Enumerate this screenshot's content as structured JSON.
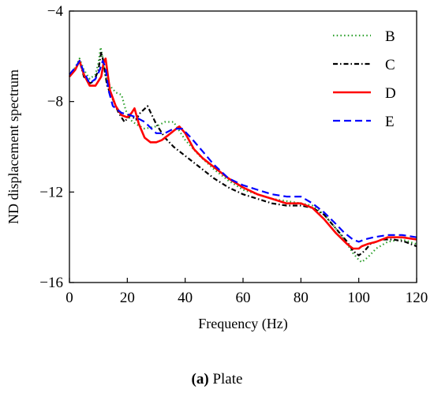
{
  "chart_data": {
    "type": "line",
    "title": "",
    "xlabel": "Frequency (Hz)",
    "ylabel": "ND displacement spectrum",
    "xlim": [
      0,
      120
    ],
    "ylim": [
      -16,
      -4
    ],
    "xticks": [
      0,
      20,
      40,
      60,
      80,
      100,
      120
    ],
    "yticks": [
      -16,
      -12,
      -8,
      -4
    ],
    "legend_position": "top-right",
    "grid": false,
    "series": [
      {
        "name": "B",
        "color": "#2ca02c",
        "style": "dotted",
        "x": [
          0,
          2,
          3.5,
          5,
          7,
          9,
          10,
          10.8,
          11.5,
          12.5,
          14,
          16,
          18,
          19.5,
          21,
          23,
          26,
          30,
          33,
          36,
          40,
          45,
          50,
          55,
          60,
          65,
          70,
          75,
          80,
          84,
          88,
          92,
          95,
          98,
          100,
          101,
          103,
          106,
          110,
          115,
          120
        ],
        "y": [
          -6.8,
          -6.5,
          -6.1,
          -6.6,
          -7.0,
          -6.8,
          -6.3,
          -5.6,
          -6.1,
          -6.9,
          -7.3,
          -7.6,
          -7.7,
          -8.4,
          -8.8,
          -9.0,
          -9.2,
          -9.1,
          -8.9,
          -8.9,
          -9.7,
          -10.4,
          -11.0,
          -11.5,
          -11.9,
          -12.1,
          -12.3,
          -12.4,
          -12.5,
          -12.6,
          -13.0,
          -13.6,
          -14.1,
          -14.7,
          -15.0,
          -15.1,
          -14.9,
          -14.5,
          -14.2,
          -14.1,
          -14.3
        ]
      },
      {
        "name": "C",
        "color": "#000000",
        "style": "dashdot",
        "x": [
          0,
          2,
          3.5,
          5,
          7,
          8.5,
          10,
          11,
          11.7,
          13,
          15,
          17,
          19,
          21,
          23,
          24.5,
          27,
          30,
          33,
          36,
          40,
          45,
          50,
          55,
          60,
          65,
          70,
          75,
          80,
          84,
          88,
          92,
          96,
          98,
          100,
          102,
          104,
          108,
          112,
          116,
          120
        ],
        "y": [
          -6.9,
          -6.6,
          -6.2,
          -6.9,
          -7.2,
          -7.1,
          -6.6,
          -5.8,
          -6.2,
          -7.3,
          -7.9,
          -8.5,
          -8.9,
          -8.6,
          -8.8,
          -8.5,
          -8.2,
          -9.0,
          -9.6,
          -10.0,
          -10.4,
          -10.9,
          -11.4,
          -11.8,
          -12.1,
          -12.3,
          -12.5,
          -12.6,
          -12.6,
          -12.7,
          -13.0,
          -13.6,
          -14.2,
          -14.6,
          -14.8,
          -14.6,
          -14.3,
          -14.1,
          -14.1,
          -14.2,
          -14.4
        ]
      },
      {
        "name": "D",
        "color": "#ff0000",
        "style": "solid",
        "x": [
          0,
          2,
          3.5,
          5,
          7,
          9,
          11,
          11.8,
          12.5,
          14,
          16,
          18,
          20,
          21.5,
          22.5,
          24,
          26,
          28,
          30,
          32,
          34,
          36,
          38,
          40,
          43,
          46,
          50,
          55,
          60,
          65,
          70,
          75,
          80,
          84,
          88,
          92,
          96,
          98,
          100,
          101,
          103,
          106,
          110,
          115,
          120
        ],
        "y": [
          -6.9,
          -6.6,
          -6.2,
          -6.8,
          -7.3,
          -7.3,
          -6.9,
          -6.3,
          -6.1,
          -7.5,
          -8.2,
          -8.6,
          -8.7,
          -8.5,
          -8.3,
          -9.0,
          -9.6,
          -9.8,
          -9.8,
          -9.7,
          -9.5,
          -9.3,
          -9.1,
          -9.4,
          -10.1,
          -10.5,
          -10.9,
          -11.4,
          -11.8,
          -12.1,
          -12.3,
          -12.5,
          -12.5,
          -12.7,
          -13.2,
          -13.8,
          -14.3,
          -14.5,
          -14.5,
          -14.4,
          -14.3,
          -14.2,
          -14.0,
          -14.0,
          -14.1
        ]
      },
      {
        "name": "E",
        "color": "#0000ff",
        "style": "dashed",
        "x": [
          0,
          2,
          3.5,
          5,
          7,
          9,
          10.5,
          11.5,
          12.5,
          13.5,
          15,
          18,
          21,
          23,
          26,
          30,
          33,
          36,
          39,
          42,
          46,
          50,
          55,
          60,
          65,
          70,
          75,
          80,
          84,
          88,
          92,
          95,
          98,
          100,
          102,
          105,
          110,
          115,
          120
        ],
        "y": [
          -6.8,
          -6.5,
          -6.2,
          -6.7,
          -7.2,
          -7.0,
          -6.6,
          -6.2,
          -6.5,
          -7.5,
          -8.2,
          -8.5,
          -8.6,
          -8.7,
          -8.9,
          -9.4,
          -9.4,
          -9.2,
          -9.2,
          -9.6,
          -10.2,
          -10.8,
          -11.4,
          -11.7,
          -11.9,
          -12.1,
          -12.2,
          -12.2,
          -12.5,
          -12.9,
          -13.4,
          -13.8,
          -14.1,
          -14.2,
          -14.1,
          -14.0,
          -13.9,
          -13.9,
          -14.0
        ]
      }
    ]
  },
  "caption": {
    "label": "(a)",
    "text": " Plate"
  }
}
